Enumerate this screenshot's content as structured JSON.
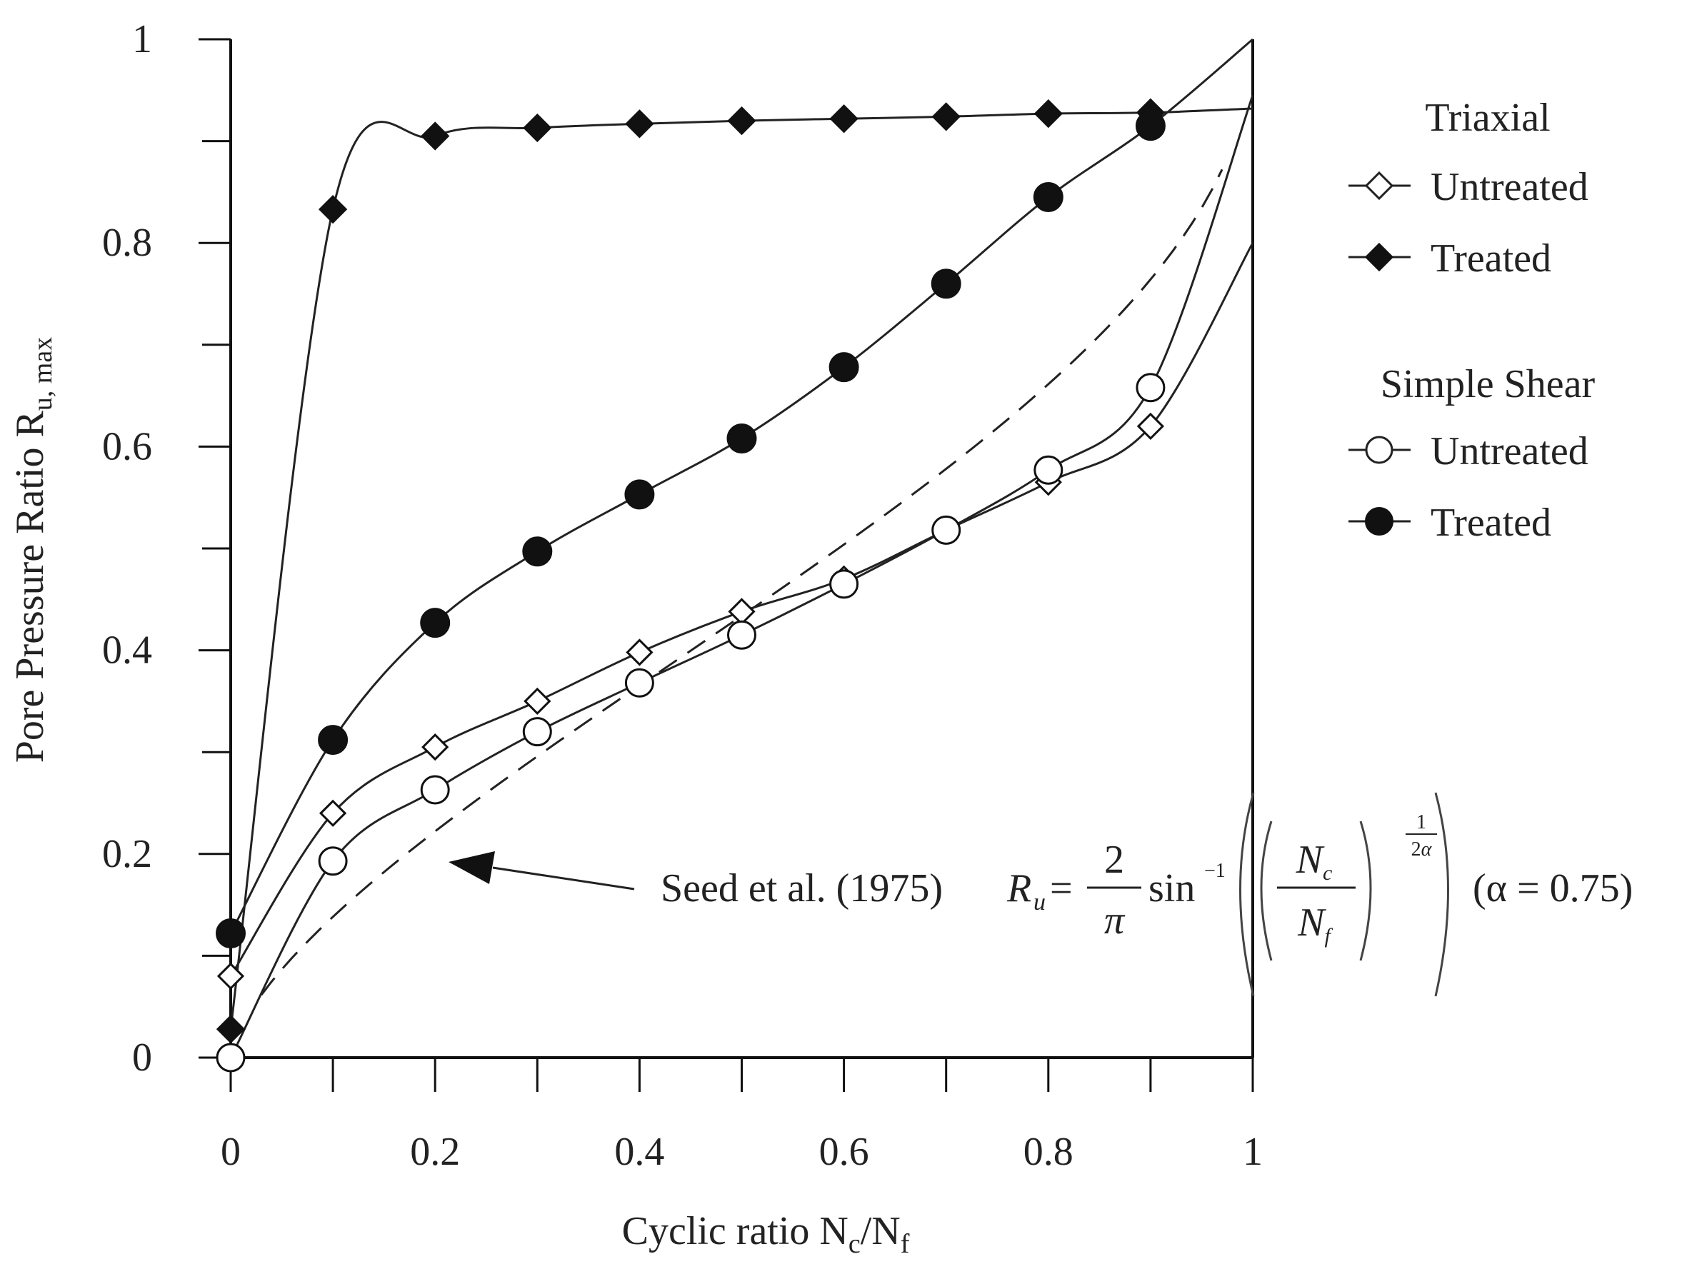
{
  "chart_data": {
    "type": "line",
    "xlabel": "Cyclic ratio N",
    "xlabel_sub1": "c",
    "xlabel_mid": "/N",
    "xlabel_sub2": "f",
    "ylabel": "Pore Pressure Ratio R",
    "ylabel_sub": "u, max",
    "xlim": [
      0,
      1
    ],
    "ylim": [
      0,
      1
    ],
    "x_ticks": [
      "0",
      "0.2",
      "0.4",
      "0.6",
      "0.8",
      "1"
    ],
    "y_ticks": [
      "0",
      "0.2",
      "0.4",
      "0.6",
      "0.8",
      "1"
    ],
    "legend": {
      "placement": "right",
      "groups": [
        {
          "title": "Triaxial",
          "entries": [
            "Untreated",
            "Treated"
          ]
        },
        {
          "title": "Simple Shear",
          "entries": [
            "Untreated",
            "Treated"
          ]
        }
      ]
    },
    "series": [
      {
        "name": "Triaxial Untreated",
        "marker": "diamond-open",
        "x": [
          0,
          0.1,
          0.2,
          0.3,
          0.4,
          0.5,
          0.6,
          0.7,
          0.8,
          0.9
        ],
        "y": [
          0.08,
          0.24,
          0.305,
          0.35,
          0.398,
          0.438,
          0.47,
          0.518,
          0.565,
          0.62
        ],
        "curve_end": [
          1.0,
          0.8
        ]
      },
      {
        "name": "Triaxial Treated",
        "marker": "diamond-filled",
        "x": [
          0,
          0.1,
          0.2,
          0.3,
          0.4,
          0.5,
          0.6,
          0.7,
          0.8,
          0.9
        ],
        "y": [
          0.028,
          0.833,
          0.905,
          0.913,
          0.917,
          0.92,
          0.922,
          0.924,
          0.927,
          0.928
        ],
        "curve_end": [
          1.0,
          0.932
        ]
      },
      {
        "name": "Simple Shear Untreated",
        "marker": "circle-open",
        "x": [
          0,
          0.1,
          0.2,
          0.3,
          0.4,
          0.5,
          0.6,
          0.7,
          0.8,
          0.9
        ],
        "y": [
          0,
          0.193,
          0.263,
          0.32,
          0.368,
          0.415,
          0.465,
          0.518,
          0.577,
          0.658
        ],
        "curve_end": [
          1.0,
          0.945
        ]
      },
      {
        "name": "Simple Shear Treated",
        "marker": "circle-filled",
        "x": [
          0,
          0.1,
          0.2,
          0.3,
          0.4,
          0.5,
          0.6,
          0.7,
          0.8,
          0.9
        ],
        "y": [
          0.122,
          0.312,
          0.427,
          0.497,
          0.553,
          0.608,
          0.678,
          0.76,
          0.845,
          0.915
        ],
        "curve_end": [
          1.0,
          1.0
        ]
      }
    ],
    "reference_curve": {
      "style": "dashed",
      "equation": "Ru = (2/π) sin^-1((Nc/Nf)^(1/(2α)))",
      "alpha": 0.75
    },
    "annotation": {
      "label": "Seed et al. (1975)",
      "alpha_label": "(α = 0.75)",
      "arrow_target": [
        0.21,
        0.195
      ]
    }
  }
}
